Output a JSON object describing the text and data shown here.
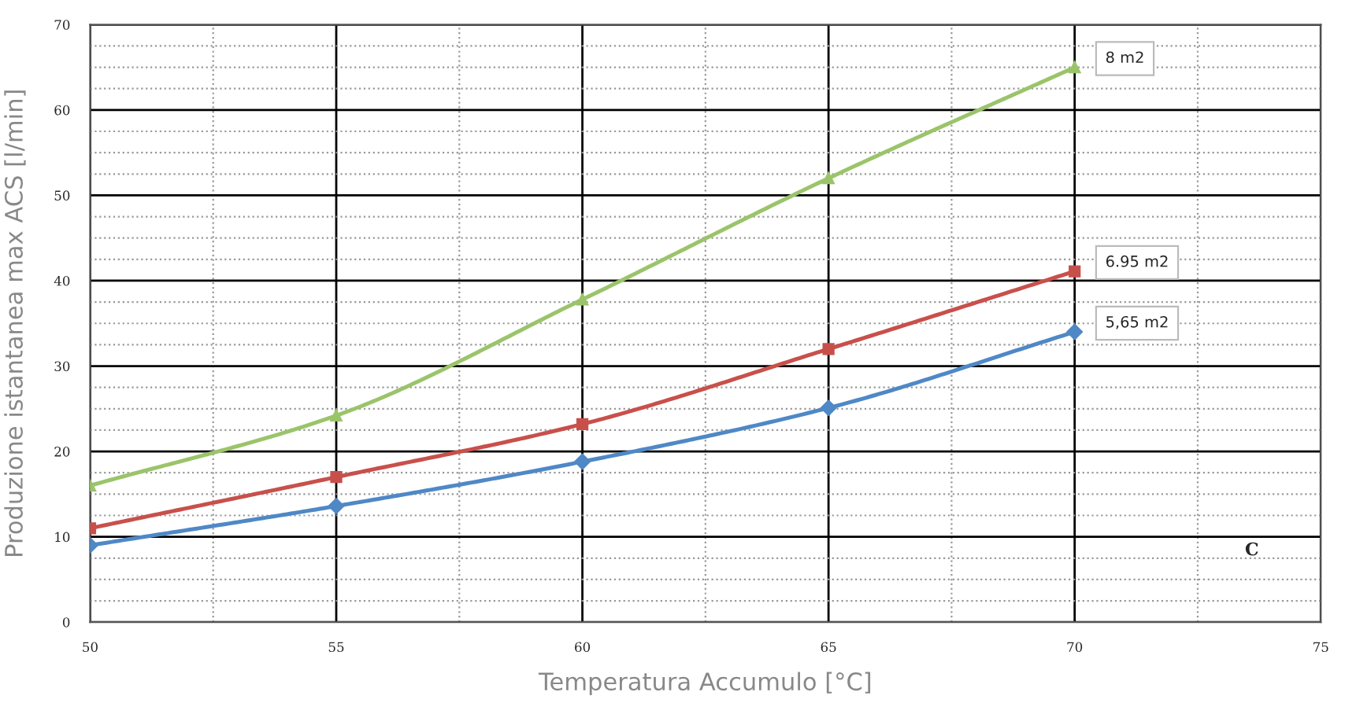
{
  "chart_data": {
    "type": "line",
    "xlabel": "Temperatura Accumulo [°C]",
    "ylabel": "Produzione istantanea max ACS [l/min]",
    "x": [
      50,
      55,
      60,
      65,
      70
    ],
    "series": [
      {
        "name": "5,65 m2",
        "color": "#4f88c6",
        "marker": "diamond",
        "values": [
          9.0,
          13.6,
          18.8,
          25.1,
          34.0
        ]
      },
      {
        "name": "6.95 m2",
        "color": "#c8504b",
        "marker": "square",
        "values": [
          11.0,
          17.0,
          23.2,
          32.0,
          41.1
        ]
      },
      {
        "name": "8 m2",
        "color": "#9bc46a",
        "marker": "triangle",
        "values": [
          16.0,
          24.2,
          37.8,
          52.0,
          65.0
        ]
      }
    ],
    "xlim": [
      50,
      75
    ],
    "xticks": [
      50,
      55,
      60,
      65,
      70,
      75
    ],
    "ylim": [
      0,
      70
    ],
    "yticks": [
      0,
      10,
      20,
      30,
      40,
      50,
      60,
      70
    ],
    "grid": true,
    "line_style": "solid",
    "legend": false,
    "annotations": [
      "C"
    ]
  }
}
